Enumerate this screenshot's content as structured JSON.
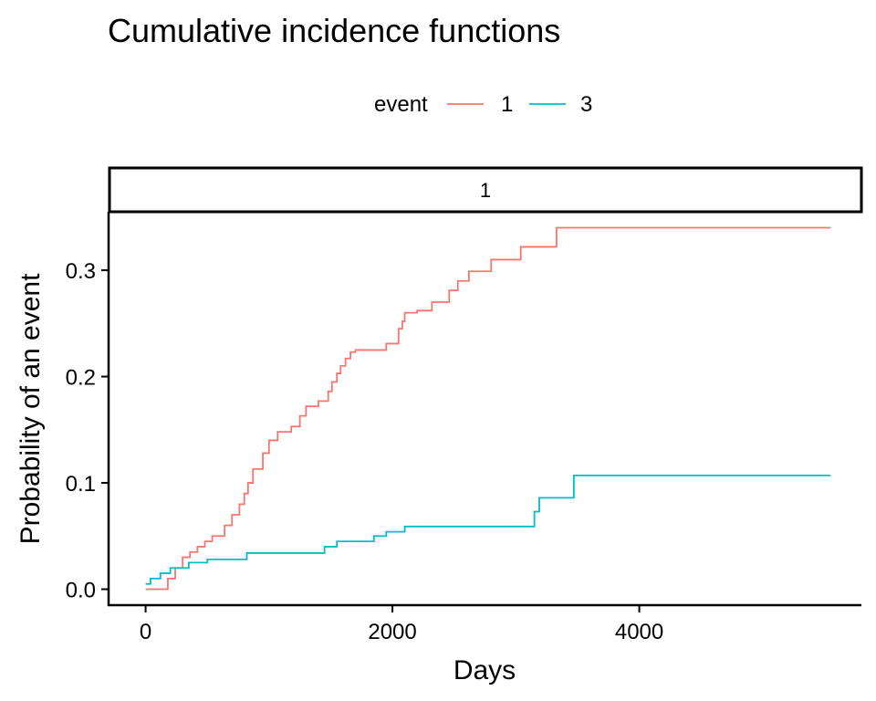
{
  "chart_data": {
    "type": "line",
    "step": true,
    "title": "Cumulative incidence functions",
    "xlabel": "Days",
    "ylabel": "Probability of an event",
    "facet_label": "1",
    "legend": {
      "title": "event",
      "placement": "top-center"
    },
    "xlim": [
      -300,
      5800
    ],
    "ylim": [
      -0.015,
      0.355
    ],
    "xticks": [
      0,
      2000,
      4000
    ],
    "xtick_labels": [
      "0",
      "2000",
      "4000"
    ],
    "yticks": [
      0.0,
      0.1,
      0.2,
      0.3
    ],
    "ytick_labels": [
      "0.0",
      "0.1",
      "0.2",
      "0.3"
    ],
    "grid": false,
    "series": [
      {
        "name": "1",
        "color": "#F8766D",
        "x": [
          0,
          180,
          240,
          300,
          360,
          420,
          480,
          540,
          640,
          700,
          760,
          800,
          830,
          870,
          950,
          1000,
          1070,
          1180,
          1250,
          1300,
          1400,
          1480,
          1510,
          1550,
          1580,
          1620,
          1660,
          1700,
          1850,
          1950,
          2050,
          2080,
          2100,
          2200,
          2320,
          2460,
          2530,
          2620,
          2800,
          3040,
          3330,
          5550
        ],
        "y": [
          0.0,
          0.01,
          0.02,
          0.03,
          0.035,
          0.04,
          0.045,
          0.05,
          0.06,
          0.07,
          0.08,
          0.09,
          0.1,
          0.113,
          0.128,
          0.14,
          0.148,
          0.153,
          0.163,
          0.172,
          0.177,
          0.186,
          0.195,
          0.203,
          0.21,
          0.217,
          0.223,
          0.225,
          0.225,
          0.231,
          0.245,
          0.252,
          0.26,
          0.262,
          0.27,
          0.281,
          0.29,
          0.299,
          0.31,
          0.322,
          0.34,
          0.34
        ]
      },
      {
        "name": "3",
        "color": "#00BFC4",
        "x": [
          0,
          40,
          120,
          200,
          350,
          500,
          820,
          1450,
          1550,
          1850,
          1950,
          2100,
          3150,
          3190,
          3470,
          5550
        ],
        "y": [
          0.005,
          0.01,
          0.015,
          0.02,
          0.025,
          0.028,
          0.034,
          0.04,
          0.045,
          0.05,
          0.054,
          0.059,
          0.073,
          0.086,
          0.107,
          0.107
        ]
      }
    ]
  }
}
